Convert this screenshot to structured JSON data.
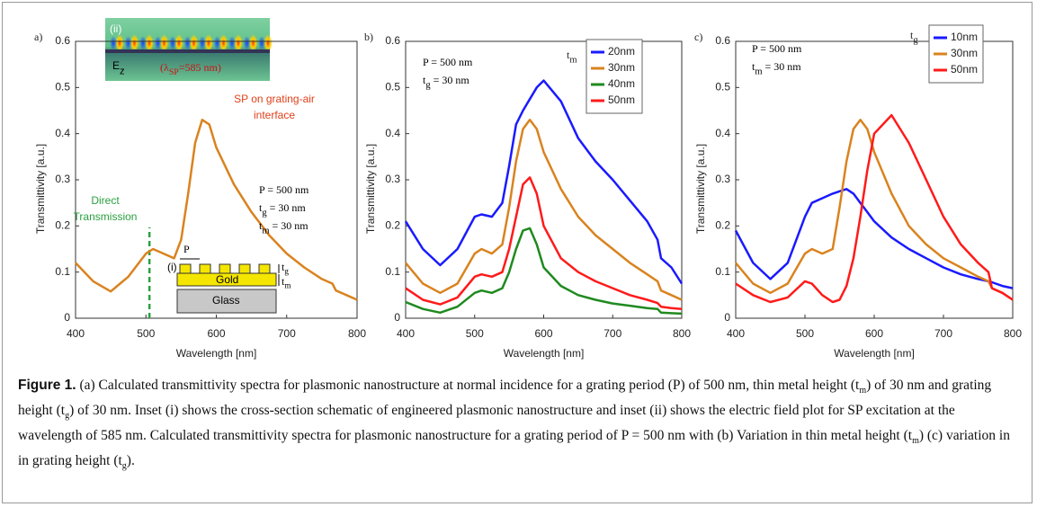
{
  "chart_data": [
    {
      "type": "line",
      "panel_label": "a)",
      "xlabel": "Wavelength [nm]",
      "ylabel": "Transmittivity [a.u.]",
      "x": [
        400,
        425,
        450,
        475,
        500,
        510,
        525,
        540,
        550,
        560,
        570,
        580,
        590,
        600,
        625,
        650,
        675,
        700,
        725,
        750,
        765,
        770,
        785,
        800
      ],
      "series": [
        {
          "color": "#d9831f",
          "values": [
            0.12,
            0.08,
            0.058,
            0.09,
            0.14,
            0.15,
            0.14,
            0.13,
            0.17,
            0.27,
            0.38,
            0.43,
            0.42,
            0.37,
            0.29,
            0.23,
            0.18,
            0.14,
            0.11,
            0.085,
            0.075,
            0.06,
            0.05,
            0.04
          ]
        }
      ],
      "marker_x": 505,
      "xlim": [
        400,
        800
      ],
      "xticks": [
        400,
        500,
        600,
        700,
        800
      ],
      "ylim": [
        0,
        0.6
      ],
      "yticks": [
        0,
        0.1,
        0.2,
        0.3,
        0.4,
        0.5,
        0.6
      ],
      "annotations": [
        {
          "t": "(ii)"
        },
        {
          "t": "E",
          "s": "z"
        },
        {
          "t": "(λ",
          "s": "SP",
          "r": "=585 nm)"
        },
        {
          "t": "SP on grating-air"
        },
        {
          "t": "interface"
        },
        {
          "t": "Direct"
        },
        {
          "t": "Transmission"
        },
        {
          "t": "P = 500 nm"
        },
        {
          "t": "t",
          "s": "g",
          "r": " = 30 nm"
        },
        {
          "t": "t",
          "s": "m",
          "r": " = 30 nm"
        },
        {
          "t": "P"
        },
        {
          "t": "(i)"
        },
        {
          "t": "Gold"
        },
        {
          "t": "Glass"
        },
        {
          "t": "t",
          "s": "g"
        },
        {
          "t": "t",
          "s": "m"
        }
      ]
    },
    {
      "type": "line",
      "panel_label": "b)",
      "xlabel": "Wavelength [nm]",
      "ylabel": "Transmittivity [a.u.]",
      "x": [
        400,
        425,
        450,
        475,
        500,
        510,
        525,
        540,
        550,
        560,
        570,
        580,
        590,
        600,
        625,
        650,
        675,
        700,
        725,
        750,
        765,
        770,
        785,
        800
      ],
      "legend_title": {
        "t": "t",
        "s": "m"
      },
      "series": [
        {
          "name": "20nm",
          "color": "#1a1aff",
          "values": [
            0.21,
            0.15,
            0.115,
            0.15,
            0.22,
            0.225,
            0.22,
            0.25,
            0.33,
            0.42,
            0.45,
            0.475,
            0.5,
            0.515,
            0.47,
            0.39,
            0.34,
            0.3,
            0.255,
            0.21,
            0.17,
            0.13,
            0.11,
            0.075
          ]
        },
        {
          "name": "30nm",
          "color": "#d9831f",
          "values": [
            0.12,
            0.075,
            0.055,
            0.075,
            0.14,
            0.15,
            0.14,
            0.16,
            0.24,
            0.34,
            0.41,
            0.43,
            0.41,
            0.36,
            0.28,
            0.22,
            0.18,
            0.15,
            0.12,
            0.095,
            0.08,
            0.06,
            0.05,
            0.04
          ]
        },
        {
          "name": "40nm",
          "color": "#1f8a1f",
          "values": [
            0.035,
            0.02,
            0.012,
            0.025,
            0.055,
            0.06,
            0.055,
            0.065,
            0.1,
            0.15,
            0.19,
            0.195,
            0.16,
            0.11,
            0.07,
            0.05,
            0.04,
            0.032,
            0.027,
            0.022,
            0.02,
            0.012,
            0.011,
            0.01
          ]
        },
        {
          "name": "50nm",
          "color": "#ff1a1a",
          "values": [
            0.065,
            0.04,
            0.03,
            0.045,
            0.09,
            0.095,
            0.09,
            0.1,
            0.15,
            0.22,
            0.29,
            0.305,
            0.27,
            0.2,
            0.13,
            0.1,
            0.08,
            0.065,
            0.05,
            0.04,
            0.033,
            0.025,
            0.022,
            0.02
          ]
        }
      ],
      "xlim": [
        400,
        800
      ],
      "xticks": [
        400,
        500,
        600,
        700,
        800
      ],
      "ylim": [
        0,
        0.6
      ],
      "yticks": [
        0,
        0.1,
        0.2,
        0.3,
        0.4,
        0.5,
        0.6
      ],
      "annotations": [
        {
          "t": "P = 500 nm"
        },
        {
          "t": "t",
          "s": "g",
          "r": " = 30 nm"
        }
      ]
    },
    {
      "type": "line",
      "panel_label": "c)",
      "xlabel": "Wavelength [nm]",
      "ylabel": "Transmittivity [a.u.]",
      "x": [
        400,
        425,
        450,
        475,
        500,
        510,
        525,
        540,
        550,
        560,
        570,
        580,
        590,
        600,
        625,
        650,
        675,
        700,
        725,
        750,
        765,
        770,
        785,
        800
      ],
      "legend_title": {
        "t": "t",
        "s": "g"
      },
      "series": [
        {
          "name": "10nm",
          "color": "#1a1aff",
          "values": [
            0.19,
            0.12,
            0.085,
            0.12,
            0.22,
            0.25,
            0.26,
            0.27,
            0.275,
            0.28,
            0.27,
            0.25,
            0.23,
            0.21,
            0.175,
            0.15,
            0.13,
            0.11,
            0.095,
            0.085,
            0.08,
            0.078,
            0.07,
            0.065
          ]
        },
        {
          "name": "30nm",
          "color": "#d9831f",
          "values": [
            0.12,
            0.075,
            0.055,
            0.075,
            0.14,
            0.15,
            0.14,
            0.15,
            0.24,
            0.34,
            0.41,
            0.43,
            0.41,
            0.36,
            0.27,
            0.2,
            0.16,
            0.13,
            0.11,
            0.09,
            0.08,
            0.065,
            0.055,
            0.04
          ]
        },
        {
          "name": "50nm",
          "color": "#ff1a1a",
          "values": [
            0.075,
            0.05,
            0.035,
            0.045,
            0.08,
            0.075,
            0.05,
            0.035,
            0.04,
            0.07,
            0.13,
            0.22,
            0.32,
            0.4,
            0.44,
            0.38,
            0.3,
            0.22,
            0.16,
            0.12,
            0.1,
            0.065,
            0.055,
            0.04
          ]
        }
      ],
      "xlim": [
        400,
        800
      ],
      "xticks": [
        400,
        500,
        600,
        700,
        800
      ],
      "ylim": [
        0,
        0.6
      ],
      "yticks": [
        0,
        0.1,
        0.2,
        0.3,
        0.4,
        0.5,
        0.6
      ],
      "annotations": [
        {
          "t": "P = 500 nm"
        },
        {
          "t": "t",
          "s": "m",
          "r": " = 30 nm"
        }
      ]
    }
  ],
  "caption": [
    {
      "b": "Figure 1."
    },
    {
      "t": " (a) Calculated transmittivity spectra for plasmonic nanostructure at normal incidence for a grating period (P) of 500 nm, thin metal height (t"
    },
    {
      "s": "m"
    },
    {
      "t": ") of 30 nm and grating height (t"
    },
    {
      "s": "g"
    },
    {
      "t": ") of 30 nm. Inset (i) shows the cross-section schematic of engineered plasmonic nanostructure and inset (ii) shows the electric field plot for SP excitation at the wavelength of 585 nm. Calculated transmittivity spectra for plasmonic nanostructure for a grating period of P = 500 nm with (b) Variation in thin metal height (t"
    },
    {
      "s": "m"
    },
    {
      "t": ") (c) variation in in grating height (t"
    },
    {
      "s": "g"
    },
    {
      "t": ")."
    }
  ]
}
